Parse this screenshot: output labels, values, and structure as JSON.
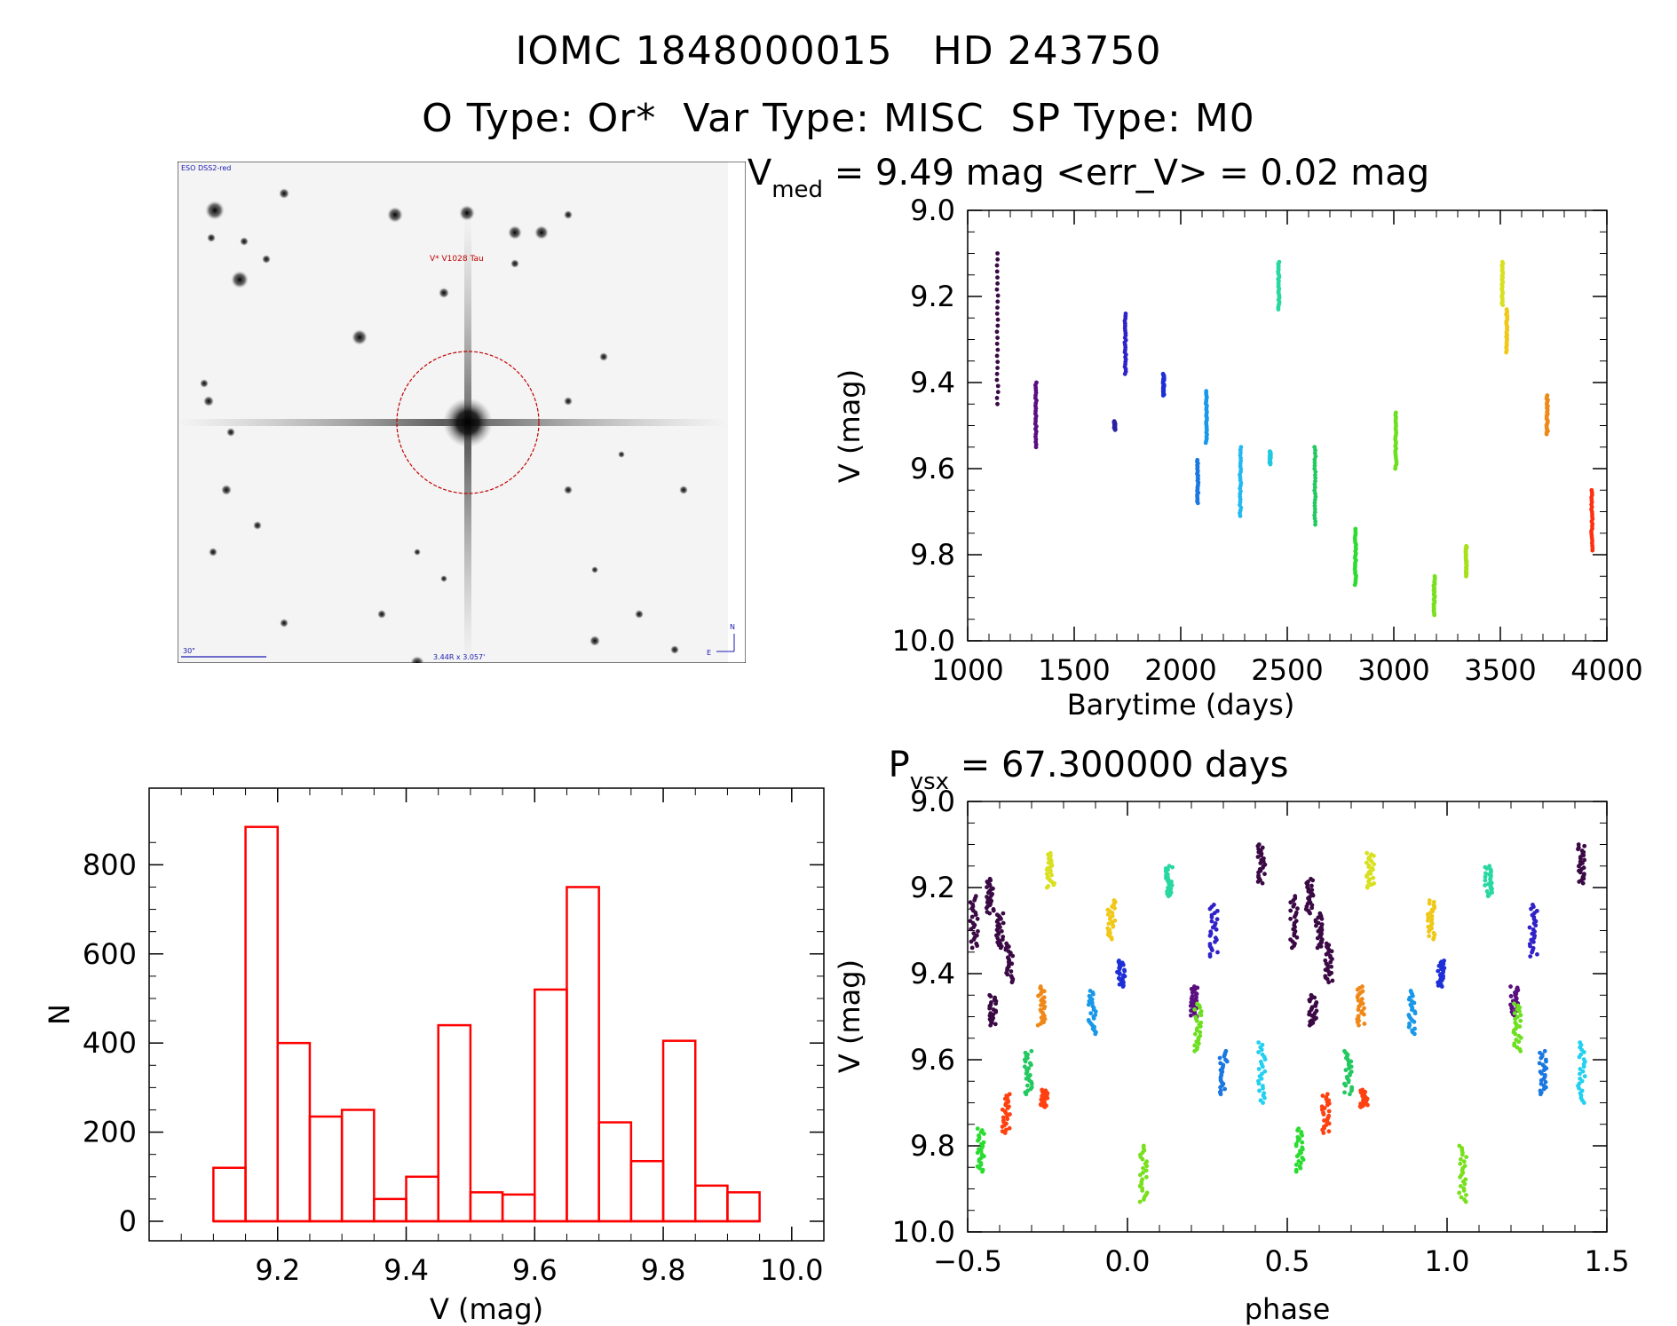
{
  "header": {
    "line1": "IOMC 1848000015   HD 243750",
    "line2": "O Type: Or*  Var Type: MISC  SP Type: M0"
  },
  "finder": {
    "survey_label": "ESO DSS2-red",
    "target_label": "V* V1028 Tau",
    "scale_label": "30\"",
    "fov_label": "3.44R x 3.057'",
    "north_label": "N",
    "east_label": "E"
  },
  "colors": {
    "histogram": "#ff0000",
    "finder_circle": "#c00000",
    "finder_labels": "#1a1ab0"
  },
  "chart_data": [
    {
      "id": "lightcurve",
      "type": "scatter",
      "title_main": "V",
      "title_sub": "med",
      "title_rest": " = 9.49 mag <err_V> = 0.02 mag",
      "xlabel": "Barytime (days)",
      "ylabel": "V (mag)",
      "xlim": [
        1000,
        4000
      ],
      "ylim": [
        10.0,
        9.0
      ],
      "xticks": [
        1000,
        1500,
        2000,
        2500,
        3000,
        3500,
        4000
      ],
      "yticks": [
        9.0,
        9.2,
        9.4,
        9.6,
        9.8,
        10.0
      ],
      "series": [
        {
          "x": 1140,
          "ymin": 9.1,
          "ymax": 9.45,
          "color": "#3b0a45"
        },
        {
          "x": 1320,
          "ymin": 9.4,
          "ymax": 9.55,
          "color": "#5a0f80"
        },
        {
          "x": 1690,
          "ymin": 9.49,
          "ymax": 9.51,
          "color": "#2b1fa8"
        },
        {
          "x": 1740,
          "ymin": 9.24,
          "ymax": 9.38,
          "color": "#3021c8"
        },
        {
          "x": 1920,
          "ymin": 9.38,
          "ymax": 9.43,
          "color": "#1f2fd8"
        },
        {
          "x": 2080,
          "ymin": 9.58,
          "ymax": 9.68,
          "color": "#1a78e0"
        },
        {
          "x": 2120,
          "ymin": 9.42,
          "ymax": 9.54,
          "color": "#1898e8"
        },
        {
          "x": 2280,
          "ymin": 9.55,
          "ymax": 9.71,
          "color": "#22b8f0"
        },
        {
          "x": 2420,
          "ymin": 9.56,
          "ymax": 9.59,
          "color": "#22c8e0"
        },
        {
          "x": 2460,
          "ymin": 9.12,
          "ymax": 9.23,
          "color": "#28d8a0"
        },
        {
          "x": 2630,
          "ymin": 9.55,
          "ymax": 9.73,
          "color": "#22c860"
        },
        {
          "x": 2820,
          "ymin": 9.74,
          "ymax": 9.87,
          "color": "#2adc30"
        },
        {
          "x": 3010,
          "ymin": 9.47,
          "ymax": 9.6,
          "color": "#6ce01e"
        },
        {
          "x": 3190,
          "ymin": 9.85,
          "ymax": 9.94,
          "color": "#78e01c"
        },
        {
          "x": 3340,
          "ymin": 9.78,
          "ymax": 9.85,
          "color": "#a6e01a"
        },
        {
          "x": 3510,
          "ymin": 9.12,
          "ymax": 9.22,
          "color": "#d8e020"
        },
        {
          "x": 3530,
          "ymin": 9.23,
          "ymax": 9.33,
          "color": "#f0c818"
        },
        {
          "x": 3720,
          "ymin": 9.43,
          "ymax": 9.52,
          "color": "#f08818"
        },
        {
          "x": 3930,
          "ymin": 9.65,
          "ymax": 9.79,
          "color": "#ff3010"
        }
      ]
    },
    {
      "id": "phased",
      "type": "scatter",
      "title_main": "P",
      "title_sub": "vsx",
      "title_rest": " = 67.300000 days",
      "xlabel": "phase",
      "ylabel": "V (mag)",
      "xlim": [
        -0.5,
        1.5
      ],
      "ylim": [
        10.0,
        9.0
      ],
      "xticks": [
        -0.5,
        0.0,
        0.5,
        1.0,
        1.5
      ],
      "ytick_values": [
        9.0,
        9.2,
        9.4,
        9.6,
        9.8,
        10.0
      ],
      "ytick_labels": [
        "9.0",
        "9.2",
        "9.4",
        "9.6",
        "9.8",
        "10.0"
      ],
      "xtick_labels": [
        "−0.5",
        "0.0",
        "0.5",
        "1.0",
        "1.5"
      ],
      "series": [
        {
          "x": -0.43,
          "ymin": 9.18,
          "ymax": 9.26,
          "color": "#3b0a45"
        },
        {
          "x": -0.4,
          "ymin": 9.26,
          "ymax": 9.34,
          "color": "#3b0a45"
        },
        {
          "x": -0.37,
          "ymin": 9.33,
          "ymax": 9.42,
          "color": "#3b0a45"
        },
        {
          "x": -0.48,
          "ymin": 9.22,
          "ymax": 9.34,
          "color": "#3b0a45"
        },
        {
          "x": -0.42,
          "ymin": 9.45,
          "ymax": 9.52,
          "color": "#3b0a45"
        },
        {
          "x": 0.42,
          "ymin": 9.1,
          "ymax": 9.19,
          "color": "#3b0a45"
        },
        {
          "x": -0.27,
          "ymin": 9.43,
          "ymax": 9.52,
          "color": "#f08818"
        },
        {
          "x": -0.38,
          "ymin": 9.68,
          "ymax": 9.77,
          "color": "#ff4010"
        },
        {
          "x": -0.26,
          "ymin": 9.67,
          "ymax": 9.71,
          "color": "#ff4010"
        },
        {
          "x": -0.31,
          "ymin": 9.58,
          "ymax": 9.68,
          "color": "#22c860"
        },
        {
          "x": -0.46,
          "ymin": 9.76,
          "ymax": 9.86,
          "color": "#2adc30"
        },
        {
          "x": 0.05,
          "ymin": 9.8,
          "ymax": 9.93,
          "color": "#78e01c"
        },
        {
          "x": -0.24,
          "ymin": 9.12,
          "ymax": 9.2,
          "color": "#d8e020"
        },
        {
          "x": -0.05,
          "ymin": 9.23,
          "ymax": 9.32,
          "color": "#f0c818"
        },
        {
          "x": 0.13,
          "ymin": 9.15,
          "ymax": 9.22,
          "color": "#28d8a0"
        },
        {
          "x": 0.21,
          "ymin": 9.43,
          "ymax": 9.5,
          "color": "#5a0f80"
        },
        {
          "x": 0.22,
          "ymin": 9.47,
          "ymax": 9.58,
          "color": "#6ce01e"
        },
        {
          "x": 0.27,
          "ymin": 9.24,
          "ymax": 9.36,
          "color": "#3021c8"
        },
        {
          "x": -0.11,
          "ymin": 9.44,
          "ymax": 9.54,
          "color": "#1898e8"
        },
        {
          "x": -0.02,
          "ymin": 9.37,
          "ymax": 9.43,
          "color": "#1f2fd8"
        },
        {
          "x": 0.3,
          "ymin": 9.58,
          "ymax": 9.68,
          "color": "#1a78e0"
        },
        {
          "x": 0.42,
          "ymin": 9.56,
          "ymax": 9.7,
          "color": "#22d0f0"
        }
      ]
    },
    {
      "id": "histogram",
      "type": "bar",
      "xlabel": "V (mag)",
      "ylabel": "N",
      "xlim": [
        9.0,
        10.05
      ],
      "ylim": [
        0,
        900
      ],
      "xticks": [
        9.2,
        9.4,
        9.6,
        9.8,
        10.0
      ],
      "yticks": [
        0,
        200,
        400,
        600,
        800
      ],
      "bin_edges": [
        9.1,
        9.15,
        9.2,
        9.25,
        9.3,
        9.35,
        9.4,
        9.45,
        9.5,
        9.55,
        9.6,
        9.65,
        9.7,
        9.75,
        9.8,
        9.85,
        9.9,
        9.95
      ],
      "counts": [
        120,
        885,
        400,
        235,
        250,
        50,
        100,
        440,
        65,
        60,
        520,
        750,
        222,
        135,
        405,
        80,
        65
      ]
    }
  ]
}
